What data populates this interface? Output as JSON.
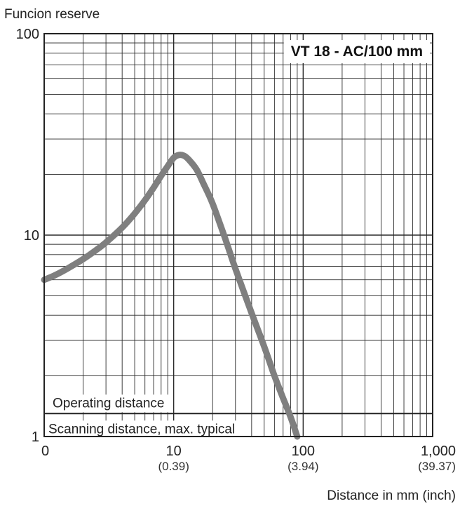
{
  "chart_data": {
    "type": "line",
    "title": "VT 18 - AC/100 mm",
    "ylabel": "Funcion reserve",
    "xlabel": "Distance in mm (inch)",
    "x_scale": "log",
    "y_scale": "log",
    "xlim": [
      1,
      1000
    ],
    "ylim": [
      1,
      100
    ],
    "grid": true,
    "xticks": [
      {
        "value": 1,
        "label": "0",
        "sub": ""
      },
      {
        "value": 10,
        "label": "10",
        "sub": "(0.39)"
      },
      {
        "value": 100,
        "label": "100",
        "sub": "(3.94)"
      },
      {
        "value": 1000,
        "label": "1,000",
        "sub": "(39.37)"
      }
    ],
    "yticks": [
      {
        "value": 1,
        "label": "1"
      },
      {
        "value": 10,
        "label": "10"
      },
      {
        "value": 100,
        "label": "100"
      }
    ],
    "series": [
      {
        "color": "#7f7f7f",
        "x": [
          1,
          1.2,
          1.5,
          2,
          2.5,
          3,
          4,
          5,
          6,
          7,
          8,
          9,
          10,
          11,
          12,
          13,
          15,
          17,
          20,
          25,
          30,
          40,
          50,
          60,
          70,
          80,
          90
        ],
        "y": [
          6.0,
          6.3,
          6.8,
          7.6,
          8.4,
          9.2,
          10.9,
          12.8,
          14.9,
          17.2,
          19.7,
          22.0,
          24.2,
          25.0,
          24.8,
          23.8,
          21.2,
          18.0,
          14.3,
          9.6,
          6.8,
          4.1,
          2.8,
          2.0,
          1.55,
          1.25,
          1.0
        ]
      }
    ],
    "threshold": {
      "y": 1.3
    },
    "regions": {
      "above": "Operating distance",
      "below": "Scanning distance, max. typical"
    }
  }
}
